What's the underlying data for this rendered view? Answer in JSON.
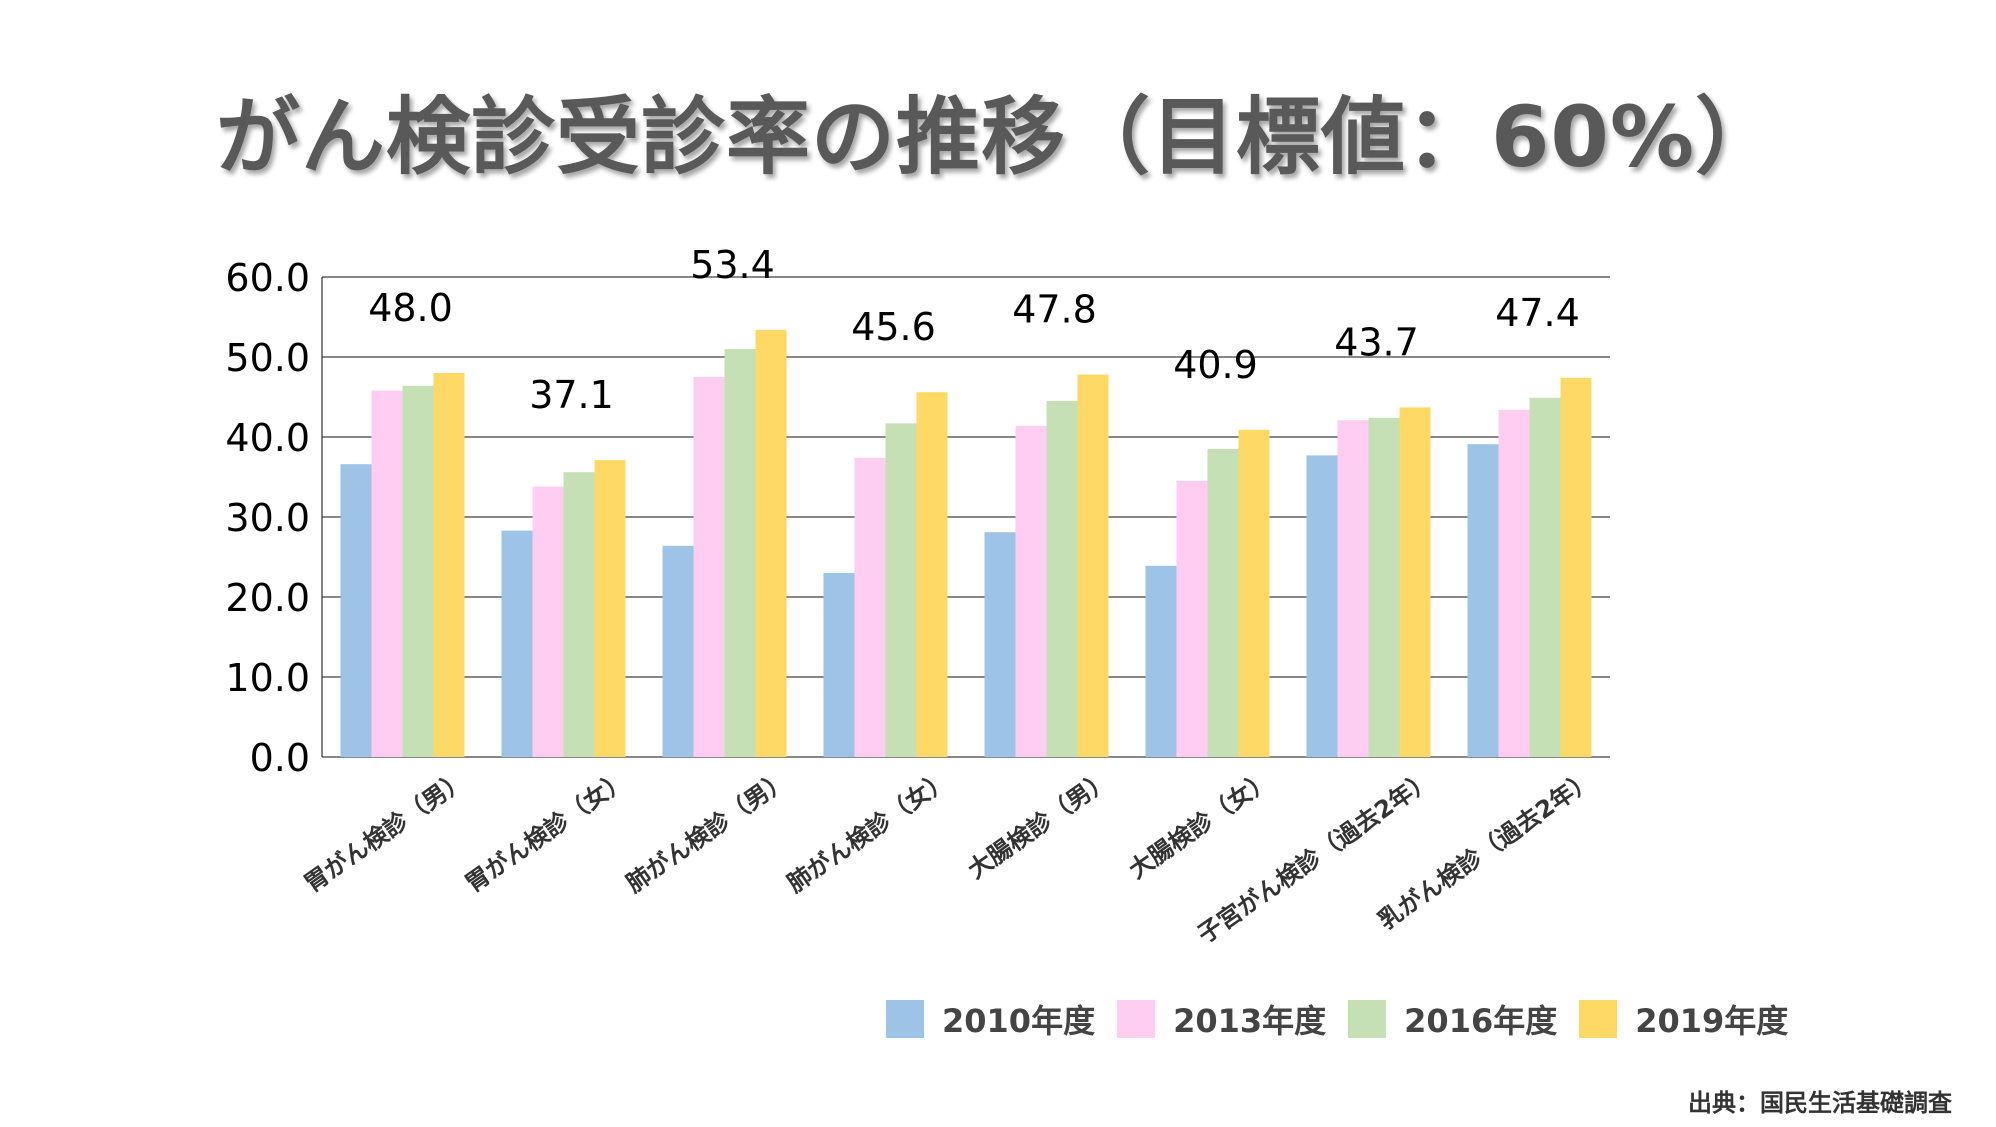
{
  "title": "がん検診受診率の推移（目標値：60%）",
  "source": "出典：国民生活基礎調査",
  "chart_data": {
    "type": "bar",
    "title": "",
    "xlabel": "",
    "ylabel": "",
    "ylim": [
      0,
      60
    ],
    "yticks": [
      "0.0",
      "10.0",
      "20.0",
      "30.0",
      "40.0",
      "50.0",
      "60.0"
    ],
    "grid": true,
    "legend_position": "bottom-right",
    "categories": [
      "胃がん検診（男）",
      "胃がん検診（女）",
      "肺がん検診（男）",
      "肺がん検診（女）",
      "大腸検診（男）",
      "大腸検診（女）",
      "子宮がん検診（過去2年）",
      "乳がん検診（過去2年）"
    ],
    "series": [
      {
        "name": "2010年度",
        "color": "#9dc3e6",
        "values": [
          36.6,
          28.3,
          26.4,
          23.0,
          28.1,
          23.9,
          37.7,
          39.1
        ]
      },
      {
        "name": "2013年度",
        "color": "#ffccf2",
        "values": [
          45.8,
          33.8,
          47.5,
          37.4,
          41.4,
          34.5,
          42.1,
          43.4
        ]
      },
      {
        "name": "2016年度",
        "color": "#c5e0b4",
        "values": [
          46.4,
          35.6,
          51.0,
          41.7,
          44.5,
          38.5,
          42.4,
          44.9
        ]
      },
      {
        "name": "2019年度",
        "color": "#ffd966",
        "values": [
          48.0,
          37.1,
          53.4,
          45.6,
          47.8,
          40.9,
          43.7,
          47.4
        ]
      }
    ],
    "data_labels": [
      "48.0",
      "37.1",
      "53.4",
      "45.6",
      "47.8",
      "40.9",
      "43.7",
      "47.4"
    ]
  }
}
